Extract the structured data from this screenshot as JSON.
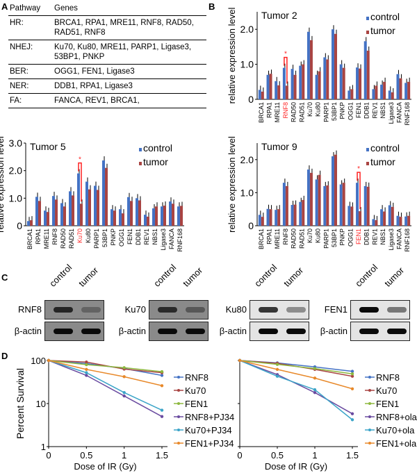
{
  "panels": {
    "a": "A",
    "b": "B",
    "c": "C",
    "d": "D"
  },
  "pathway_table": {
    "headers": [
      "Pathway",
      "Genes"
    ],
    "rows": [
      [
        "HR:",
        "BRCA1, RPA1, MRE11, RNF8, RAD50, RAD51, RNF8"
      ],
      [
        "NHEJ:",
        "Ku70, Ku80, MRE11, PARP1, Ligase3, 53BP1, PNKP"
      ],
      [
        "BER:",
        "OGG1, FEN1, Ligase3"
      ],
      [
        "NER:",
        "DDB1, RPA1, Ligase3"
      ],
      [
        "FA:",
        "FANCA, REV1, BRCA1,"
      ]
    ]
  },
  "blots": [
    {
      "target": "RNF8",
      "loading": "β-actin",
      "lanes": [
        "control",
        "tumor"
      ],
      "dark": true,
      "levels": [
        0.8,
        0.3
      ]
    },
    {
      "target": "Ku70",
      "loading": "β-actin",
      "lanes": [
        "control",
        "tumor"
      ],
      "dark": true,
      "levels": [
        0.75,
        0.4
      ]
    },
    {
      "target": "Ku80",
      "loading": "β-actin",
      "lanes": [
        "control",
        "tumor"
      ],
      "dark": false,
      "levels": [
        0.8,
        0.4
      ]
    },
    {
      "target": "FEN1",
      "loading": "β-actin",
      "lanes": [
        "control",
        "tumor"
      ],
      "dark": false,
      "levels": [
        1.0,
        0.5
      ]
    }
  ],
  "colors": {
    "control": "#4472C4",
    "tumor": "#A94442",
    "highlight": "#FF2020"
  },
  "chart_data": [
    {
      "type": "bar",
      "title": "Tumor 2",
      "ylabel": "relative expression level",
      "ylim": [
        0,
        2.5
      ],
      "yticks": [
        "0",
        "1.0",
        "2.0"
      ],
      "ytick_values": [
        0,
        1,
        2
      ],
      "legend": "top-right",
      "highlight": "RNF8",
      "annotation": "*",
      "categories": [
        "BRCA1",
        "RPA1",
        "MRE11",
        "RNF8",
        "RAD50",
        "RAD51",
        "Ku70",
        "Ku80",
        "PARP1",
        "53BP1",
        "PNKP",
        "OGG1",
        "FEN1",
        "DDB1",
        "REV1",
        "NBS1",
        "Ligase3",
        "FANCA",
        "RNF168"
      ],
      "series": [
        {
          "name": "control",
          "values": [
            0.27,
            0.7,
            0.52,
            0.9,
            0.87,
            0.96,
            1.93,
            0.7,
            1.2,
            2.0,
            1.0,
            0.25,
            0.91,
            1.66,
            0.29,
            0.42,
            0.25,
            0.72,
            0.47
          ]
        },
        {
          "name": "tumor",
          "values": [
            0.22,
            0.73,
            0.4,
            0.39,
            0.7,
            1.0,
            1.69,
            0.8,
            1.14,
            1.87,
            0.9,
            0.29,
            0.88,
            1.39,
            0.39,
            0.5,
            0.2,
            0.6,
            0.5
          ]
        }
      ]
    },
    {
      "type": "bar",
      "title": "Tumor 5",
      "ylabel": "relative expression level",
      "ylim": [
        0,
        3.0
      ],
      "yticks": [
        "0",
        "1.0",
        "2.0",
        "3.0"
      ],
      "ytick_values": [
        0,
        1,
        2,
        3
      ],
      "legend": "top-right",
      "highlight": "Ku70",
      "annotation": "*",
      "categories": [
        "BRCA1",
        "RPA1",
        "MRE11",
        "RNF8",
        "RAD50",
        "RAD51",
        "Ku70",
        "Ku80",
        "PARP1",
        "53BP1",
        "PNKP",
        "OGG1",
        "FEN1",
        "DDB1",
        "REV1",
        "NBS1",
        "Ligase3",
        "FANCA",
        "RNF168"
      ],
      "series": [
        {
          "name": "control",
          "values": [
            0.17,
            1.05,
            0.55,
            1.08,
            0.82,
            1.25,
            1.9,
            1.6,
            1.45,
            2.37,
            0.6,
            0.6,
            1.04,
            1.0,
            0.4,
            0.63,
            0.7,
            0.88,
            0.7
          ]
        },
        {
          "name": "tumor",
          "values": [
            0.2,
            0.9,
            0.5,
            0.95,
            0.7,
            1.1,
            0.8,
            1.32,
            1.3,
            2.1,
            0.55,
            0.45,
            0.9,
            0.92,
            0.33,
            0.7,
            0.73,
            0.8,
            0.72
          ]
        }
      ]
    },
    {
      "type": "bar",
      "title": "Tumor 9",
      "ylabel": "relative expression level",
      "ylim": [
        0,
        2.5
      ],
      "yticks": [
        "0",
        "1.0",
        "2.0"
      ],
      "ytick_values": [
        0,
        1,
        2
      ],
      "legend": "top-right",
      "highlight": "FEN1",
      "annotation": "*",
      "categories": [
        "BRCA1",
        "RPA1",
        "MRE11",
        "RNF8",
        "RAD50",
        "RAD51",
        "Ku70",
        "Ku80",
        "PARP1",
        "53BP1",
        "PNKP",
        "OGG1",
        "FEN1",
        "DDB1",
        "REV1",
        "NBS1",
        "Ligase3",
        "FANCA",
        "RNF168"
      ],
      "series": [
        {
          "name": "control",
          "values": [
            0.33,
            0.51,
            0.48,
            1.3,
            0.63,
            0.72,
            1.7,
            1.4,
            1.2,
            2.1,
            1.25,
            0.6,
            1.3,
            1.2,
            0.2,
            0.5,
            0.62,
            0.3,
            0.28
          ]
        },
        {
          "name": "tumor",
          "values": [
            0.27,
            0.5,
            0.5,
            1.2,
            0.64,
            0.78,
            1.6,
            1.54,
            1.22,
            2.15,
            1.3,
            0.58,
            0.44,
            1.18,
            0.17,
            0.43,
            0.57,
            0.27,
            0.3
          ]
        }
      ]
    },
    {
      "type": "line",
      "xlabel": "Dose of IR (Gy)",
      "ylabel": "Percent Survival",
      "yscale": "log",
      "ylim": [
        1,
        100
      ],
      "yticks": [
        "1",
        "10",
        "100"
      ],
      "xticks": [
        "0",
        "0.5",
        "1",
        "1.5"
      ],
      "legend": "right",
      "x": [
        0,
        0.5,
        1,
        1.5
      ],
      "series": [
        {
          "name": "RNF8",
          "color": "#4472C4",
          "values": [
            100,
            85,
            65,
            45
          ]
        },
        {
          "name": "Ku70",
          "color": "#A94442",
          "values": [
            100,
            92,
            63,
            52
          ]
        },
        {
          "name": "FEN1",
          "color": "#8DB83F",
          "values": [
            100,
            80,
            68,
            55
          ]
        },
        {
          "name": "RNF8+PJ34",
          "color": "#6A4BA0",
          "values": [
            100,
            45,
            15,
            5
          ]
        },
        {
          "name": "Ku70+PJ34",
          "color": "#3BA4C8",
          "values": [
            100,
            52,
            18,
            7
          ]
        },
        {
          "name": "FEN1+PJ34",
          "color": "#E8892A",
          "values": [
            100,
            62,
            42,
            26
          ]
        }
      ]
    },
    {
      "type": "line",
      "xlabel": "Dose of IR (Gy)",
      "yscale": "log",
      "ylim": [
        1,
        100
      ],
      "xticks": [
        "0",
        "0.5",
        "1",
        "1.5"
      ],
      "legend": "right",
      "x": [
        0,
        0.5,
        1,
        1.5
      ],
      "series": [
        {
          "name": "RNF8",
          "color": "#4472C4",
          "values": [
            100,
            88,
            71,
            56
          ]
        },
        {
          "name": "Ku70",
          "color": "#A94442",
          "values": [
            100,
            86,
            62,
            43
          ]
        },
        {
          "name": "FEN1",
          "color": "#8DB83F",
          "values": [
            100,
            81,
            65,
            49
          ]
        },
        {
          "name": "RNF8+ola",
          "color": "#6A4BA0",
          "values": [
            100,
            47,
            18,
            5.8
          ]
        },
        {
          "name": "Ku70+ola",
          "color": "#3BA4C8",
          "values": [
            100,
            43,
            21,
            4.2
          ]
        },
        {
          "name": "FEN1+ola",
          "color": "#E8892A",
          "values": [
            100,
            62,
            39,
            22
          ]
        }
      ]
    }
  ]
}
